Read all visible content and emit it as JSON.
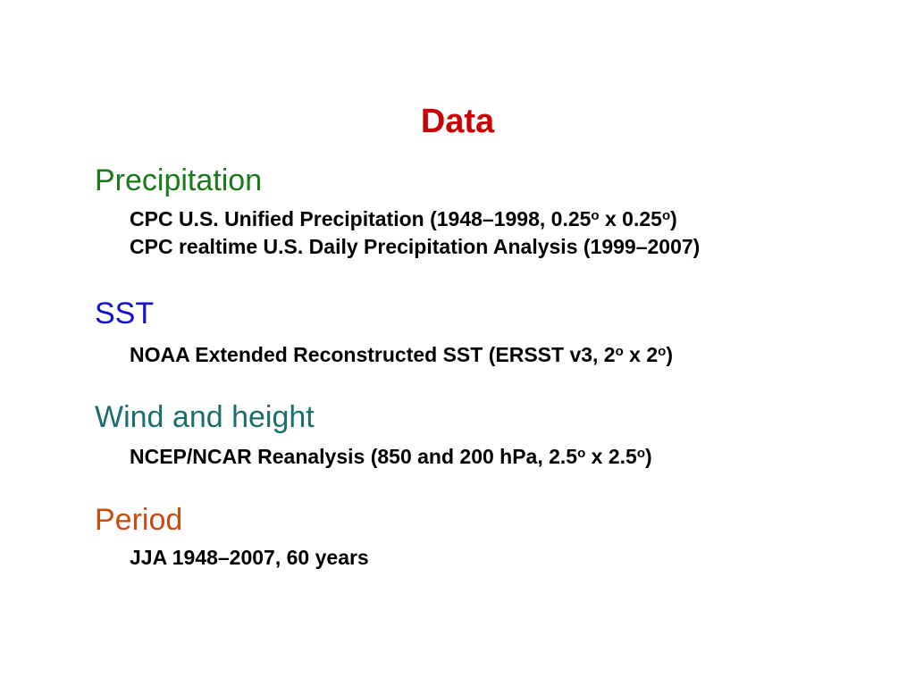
{
  "colors": {
    "title": "#cc0000",
    "precipitation": "#1a7a1a",
    "sst": "#1010cc",
    "wind": "#1a6e6e",
    "period": "#cc4a10"
  },
  "title": "Data",
  "sections": {
    "precipitation": {
      "heading": "Precipitation",
      "line1": {
        "a": "CPC U.S. Unified Precipitation (1948–1998, 0.25",
        "deg1": "o",
        "b": " x 0.25",
        "deg2": "o",
        "c": ")"
      },
      "line2": "CPC realtime U.S. Daily Precipitation Analysis (1999–2007)"
    },
    "sst": {
      "heading": "SST",
      "line1": {
        "a": "NOAA Extended Reconstructed SST (ERSST v3, 2",
        "deg1": "o",
        "b": " x 2",
        "deg2": "o",
        "c": ")"
      }
    },
    "wind": {
      "heading": "Wind and height",
      "line1": {
        "a": "NCEP/NCAR Reanalysis (850 and 200 hPa, 2.5",
        "deg1": "o",
        "b": " x 2.5",
        "deg2": "o",
        "c": ")"
      }
    },
    "period": {
      "heading": "Period",
      "line1": "JJA 1948–2007, 60 years"
    }
  }
}
